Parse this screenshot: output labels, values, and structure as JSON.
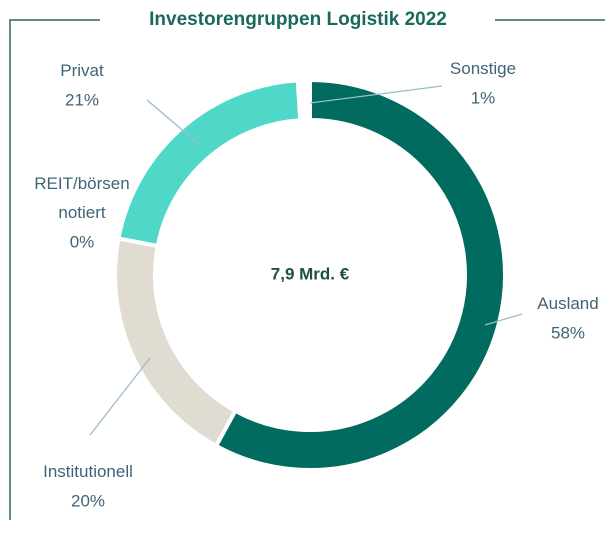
{
  "chart_data": {
    "type": "donut",
    "title": "Investorengruppen Logistik 2022",
    "center_label": "7,9 Mrd. €",
    "categories": [
      "Ausland",
      "Institutionell",
      "REIT/börsen notiert",
      "Privat",
      "Sonstige"
    ],
    "values": [
      58,
      20,
      0,
      21,
      1
    ],
    "value_labels": [
      "58%",
      "20%",
      "0%",
      "21%",
      "1%"
    ],
    "colors": [
      "#006b5e",
      "#e0dcd2",
      "#00463e",
      "#4fd8c8",
      "#ffffff"
    ]
  }
}
